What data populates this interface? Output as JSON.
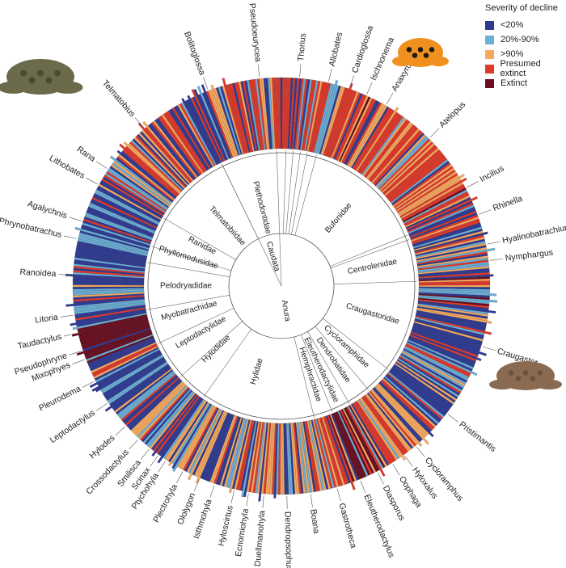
{
  "chart_data": {
    "type": "circular-phylogeny",
    "legend": {
      "title": "Severity of decline",
      "placement": "top-right",
      "entries": [
        {
          "label": "<20%",
          "color": "#2e3a94"
        },
        {
          "label": "20%-90%",
          "color": "#6baed6"
        },
        {
          "label": ">90%",
          "color": "#f6a95e"
        },
        {
          "label": "Presumed extinct",
          "color": "#e0382a"
        },
        {
          "label": "Extinct",
          "color": "#6a0d20"
        }
      ]
    },
    "orders": [
      "Caudata",
      "Anura"
    ],
    "families": [
      "Plethodontidae",
      "Telmatobiidae",
      "Ranidae",
      "Phyllomedusidae",
      "Pelodryadidae",
      "Myobatrachidae",
      "Leptodactylidae",
      "Hylodidae",
      "Hylidae",
      "Hemiphractidae",
      "Eleutherodactylidae",
      "Dendrobatidae",
      "Cycloramphidae",
      "Craugastoridae",
      "Centrolenidae",
      "Bufonidae"
    ],
    "genera": [
      "Bolitoglossa",
      "Pseudoeurycea",
      "Thorius",
      "Allobates",
      "Cardioglossa",
      "Ischnonema",
      "Anaxyrus",
      "Atelopus",
      "Incilius",
      "Rhinella",
      "Hyalinobatrachium",
      "Nymphargus",
      "Craugastor",
      "Pristimantis",
      "Cycloramphus",
      "Hyloxalus",
      "Oophaga",
      "Diasporus",
      "Eleutherodactylus",
      "Gastrotheca",
      "Boana",
      "Dendropsophus",
      "Duellmanohyla",
      "Ecnomiohyla",
      "Hyloscirtus",
      "Isthmohyla",
      "Ololygon",
      "Plectrohyla",
      "Ptychohyla",
      "Scinax",
      "Smilisca",
      "Crossodactylus",
      "Hylodes",
      "Leptodactylus",
      "Pleurodema",
      "Mixophyes",
      "Pseudophryne",
      "Taudactylus",
      "Litoria",
      "Ranoidea",
      "Phrynobatrachus",
      "Agalychnis",
      "Lithobates",
      "Rana",
      "Telmatobius"
    ]
  }
}
